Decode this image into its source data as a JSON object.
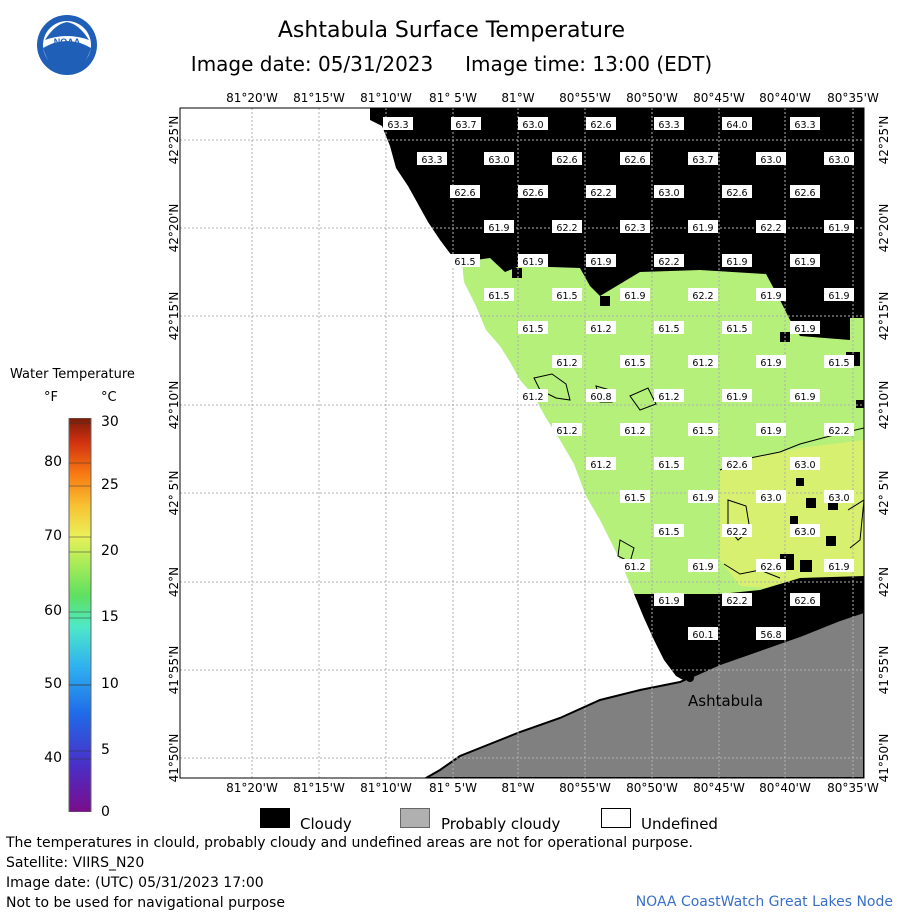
{
  "title": "Ashtabula Surface Temperature",
  "subtitle": {
    "image_date": "Image date: 05/31/2023",
    "image_time": "Image time: 13:00 (EDT)"
  },
  "logo_text": "NOAA",
  "legend": {
    "title": "Water Temperature",
    "unit_f": "°F",
    "unit_c": "°C",
    "ticks_f": [
      "80",
      "70",
      "60",
      "50",
      "40"
    ],
    "ticks_c": [
      "30",
      "25",
      "20",
      "15",
      "10",
      "5",
      "0"
    ]
  },
  "axes": {
    "lon_labels": [
      "81°20'W",
      "81°15'W",
      "81°10'W",
      "81° 5'W",
      "81°W",
      "80°55'W",
      "80°50'W",
      "80°45'W",
      "80°40'W",
      "80°35'W"
    ],
    "lat_labels": [
      "42°25'N",
      "42°20'N",
      "42°15'N",
      "42°10'N",
      "42° 5'N",
      "42°N",
      "41°55'N",
      "41°50'N"
    ]
  },
  "place_label": "Ashtabula",
  "temperature_labels": [
    [
      "63.3",
      398,
      124
    ],
    [
      "63.7",
      466,
      124
    ],
    [
      "63.0",
      533,
      124
    ],
    [
      "62.6",
      601,
      124
    ],
    [
      "63.3",
      669,
      124
    ],
    [
      "64.0",
      737,
      124
    ],
    [
      "63.3",
      805,
      124
    ],
    [
      "63.3",
      432,
      159
    ],
    [
      "63.0",
      499,
      159
    ],
    [
      "62.6",
      567,
      159
    ],
    [
      "62.6",
      635,
      159
    ],
    [
      "63.7",
      703,
      159
    ],
    [
      "63.0",
      771,
      159
    ],
    [
      "63.0",
      839,
      159
    ],
    [
      "62.6",
      465,
      192
    ],
    [
      "62.6",
      533,
      192
    ],
    [
      "62.2",
      601,
      192
    ],
    [
      "63.0",
      669,
      192
    ],
    [
      "62.6",
      737,
      192
    ],
    [
      "62.6",
      805,
      192
    ],
    [
      "61.9",
      499,
      227
    ],
    [
      "62.2",
      567,
      227
    ],
    [
      "62.3",
      635,
      227
    ],
    [
      "61.9",
      703,
      227
    ],
    [
      "62.2",
      771,
      227
    ],
    [
      "61.9",
      839,
      227
    ],
    [
      "61.5",
      465,
      261
    ],
    [
      "61.9",
      533,
      261
    ],
    [
      "61.9",
      601,
      261
    ],
    [
      "62.2",
      669,
      261
    ],
    [
      "61.9",
      737,
      261
    ],
    [
      "61.9",
      805,
      261
    ],
    [
      "61.5",
      499,
      295
    ],
    [
      "61.5",
      567,
      295
    ],
    [
      "61.9",
      635,
      295
    ],
    [
      "62.2",
      703,
      295
    ],
    [
      "61.9",
      771,
      295
    ],
    [
      "61.9",
      839,
      295
    ],
    [
      "61.5",
      533,
      328
    ],
    [
      "61.2",
      601,
      328
    ],
    [
      "61.5",
      669,
      328
    ],
    [
      "61.5",
      737,
      328
    ],
    [
      "61.9",
      805,
      328
    ],
    [
      "61.2",
      567,
      362
    ],
    [
      "61.5",
      635,
      362
    ],
    [
      "61.2",
      703,
      362
    ],
    [
      "61.9",
      771,
      362
    ],
    [
      "61.5",
      839,
      362
    ],
    [
      "61.2",
      533,
      396
    ],
    [
      "60.8",
      601,
      396
    ],
    [
      "61.2",
      669,
      396
    ],
    [
      "61.9",
      737,
      396
    ],
    [
      "61.9",
      805,
      396
    ],
    [
      "61.2",
      567,
      430
    ],
    [
      "61.2",
      635,
      430
    ],
    [
      "61.5",
      703,
      430
    ],
    [
      "61.9",
      771,
      430
    ],
    [
      "62.2",
      839,
      430
    ],
    [
      "61.2",
      601,
      464
    ],
    [
      "61.5",
      669,
      464
    ],
    [
      "62.6",
      737,
      464
    ],
    [
      "63.0",
      805,
      464
    ],
    [
      "61.5",
      635,
      497
    ],
    [
      "61.9",
      703,
      497
    ],
    [
      "63.0",
      771,
      497
    ],
    [
      "63.0",
      839,
      497
    ],
    [
      "61.5",
      669,
      531
    ],
    [
      "62.2",
      737,
      531
    ],
    [
      "63.0",
      805,
      531
    ],
    [
      "61.2",
      635,
      566
    ],
    [
      "61.9",
      703,
      566
    ],
    [
      "62.6",
      771,
      566
    ],
    [
      "61.9",
      839,
      566
    ],
    [
      "61.9",
      669,
      600
    ],
    [
      "62.2",
      737,
      600
    ],
    [
      "62.6",
      805,
      600
    ],
    [
      "60.1",
      703,
      634
    ],
    [
      "56.8",
      771,
      634
    ]
  ],
  "map_legend": {
    "cloudy": "Cloudy",
    "probably_cloudy": "Probably cloudy",
    "undefined": "Undefined"
  },
  "footer": {
    "line1": "The temperatures in clould, probably cloudy and undefined areas are not for operational purpose.",
    "line2": "Satellite: VIIRS_N20",
    "line3": "Image date: (UTC) 05/31/2023  17:00",
    "line4": "Not to be used for navigational purpose",
    "credit": "NOAA CoastWatch Great Lakes Node"
  },
  "colors": {
    "cloudy": "#000000",
    "probably_cloudy": "#808080",
    "undefined": "#ffffff",
    "water": "#b4f07a",
    "label_bg": "#ffffff"
  }
}
